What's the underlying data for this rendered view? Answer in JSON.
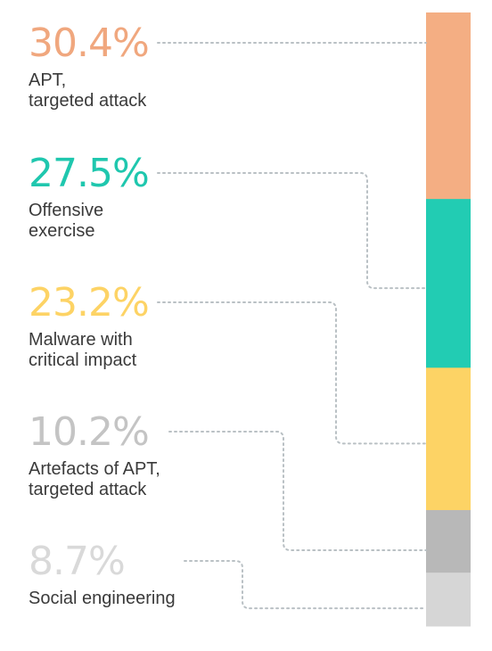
{
  "chart_data": {
    "type": "bar",
    "orientation": "stacked-vertical",
    "categories": [
      "APT,\ntargeted attack",
      "Offensive\nexercise",
      "Malware with\ncritical impact",
      "Artefacts of APT,\ntargeted attack",
      "Social engineering"
    ],
    "values": [
      30.4,
      27.5,
      23.2,
      10.2,
      8.7
    ],
    "value_labels": [
      "30.4%",
      "27.5%",
      "23.2%",
      "10.2%",
      "8.7%"
    ],
    "colors": [
      "#F4AE83",
      "#22CCB3",
      "#FDD365",
      "#B8B8B8",
      "#D6D6D6"
    ],
    "label_colors": [
      "#F0A77E",
      "#1FC7AE",
      "#FDD365",
      "#C4C4C4",
      "#D9D9D9"
    ],
    "unit": "%",
    "title": "",
    "xlabel": "",
    "ylabel": "",
    "grid": false,
    "legend": "none"
  }
}
